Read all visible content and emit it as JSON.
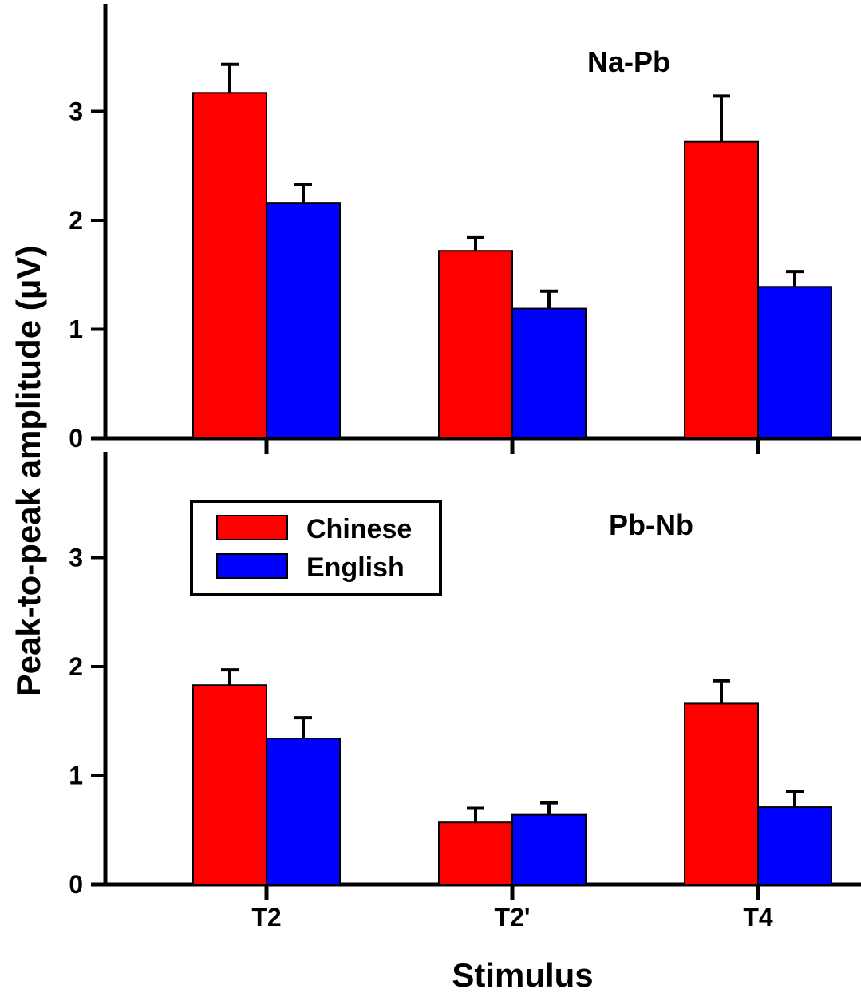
{
  "chart_data": {
    "type": "bar",
    "ylabel": "Peak-to-peak amplitude  (μV)",
    "xlabel": "Stimulus",
    "categories": [
      "T2",
      "T2'",
      "T4"
    ],
    "ylim": [
      0,
      3.9
    ],
    "yticks": [
      "0",
      "1",
      "2",
      "3"
    ],
    "legend": {
      "placement": "top-left of lower panel",
      "entries": [
        "Chinese",
        "English"
      ]
    },
    "colors": {
      "Chinese": "#ff0000",
      "English": "#0000ff"
    },
    "panels": [
      {
        "title": "Na-Pb",
        "series": [
          {
            "name": "Chinese",
            "values": [
              3.17,
              1.72,
              2.72
            ],
            "errors": [
              0.26,
              0.12,
              0.42
            ]
          },
          {
            "name": "English",
            "values": [
              2.16,
              1.19,
              1.39
            ],
            "errors": [
              0.17,
              0.16,
              0.14
            ]
          }
        ]
      },
      {
        "title": "Pb-Nb",
        "series": [
          {
            "name": "Chinese",
            "values": [
              1.83,
              0.57,
              1.66
            ],
            "errors": [
              0.14,
              0.13,
              0.21
            ]
          },
          {
            "name": "English",
            "values": [
              1.34,
              0.64,
              0.71
            ],
            "errors": [
              0.19,
              0.11,
              0.14
            ]
          }
        ]
      }
    ]
  }
}
